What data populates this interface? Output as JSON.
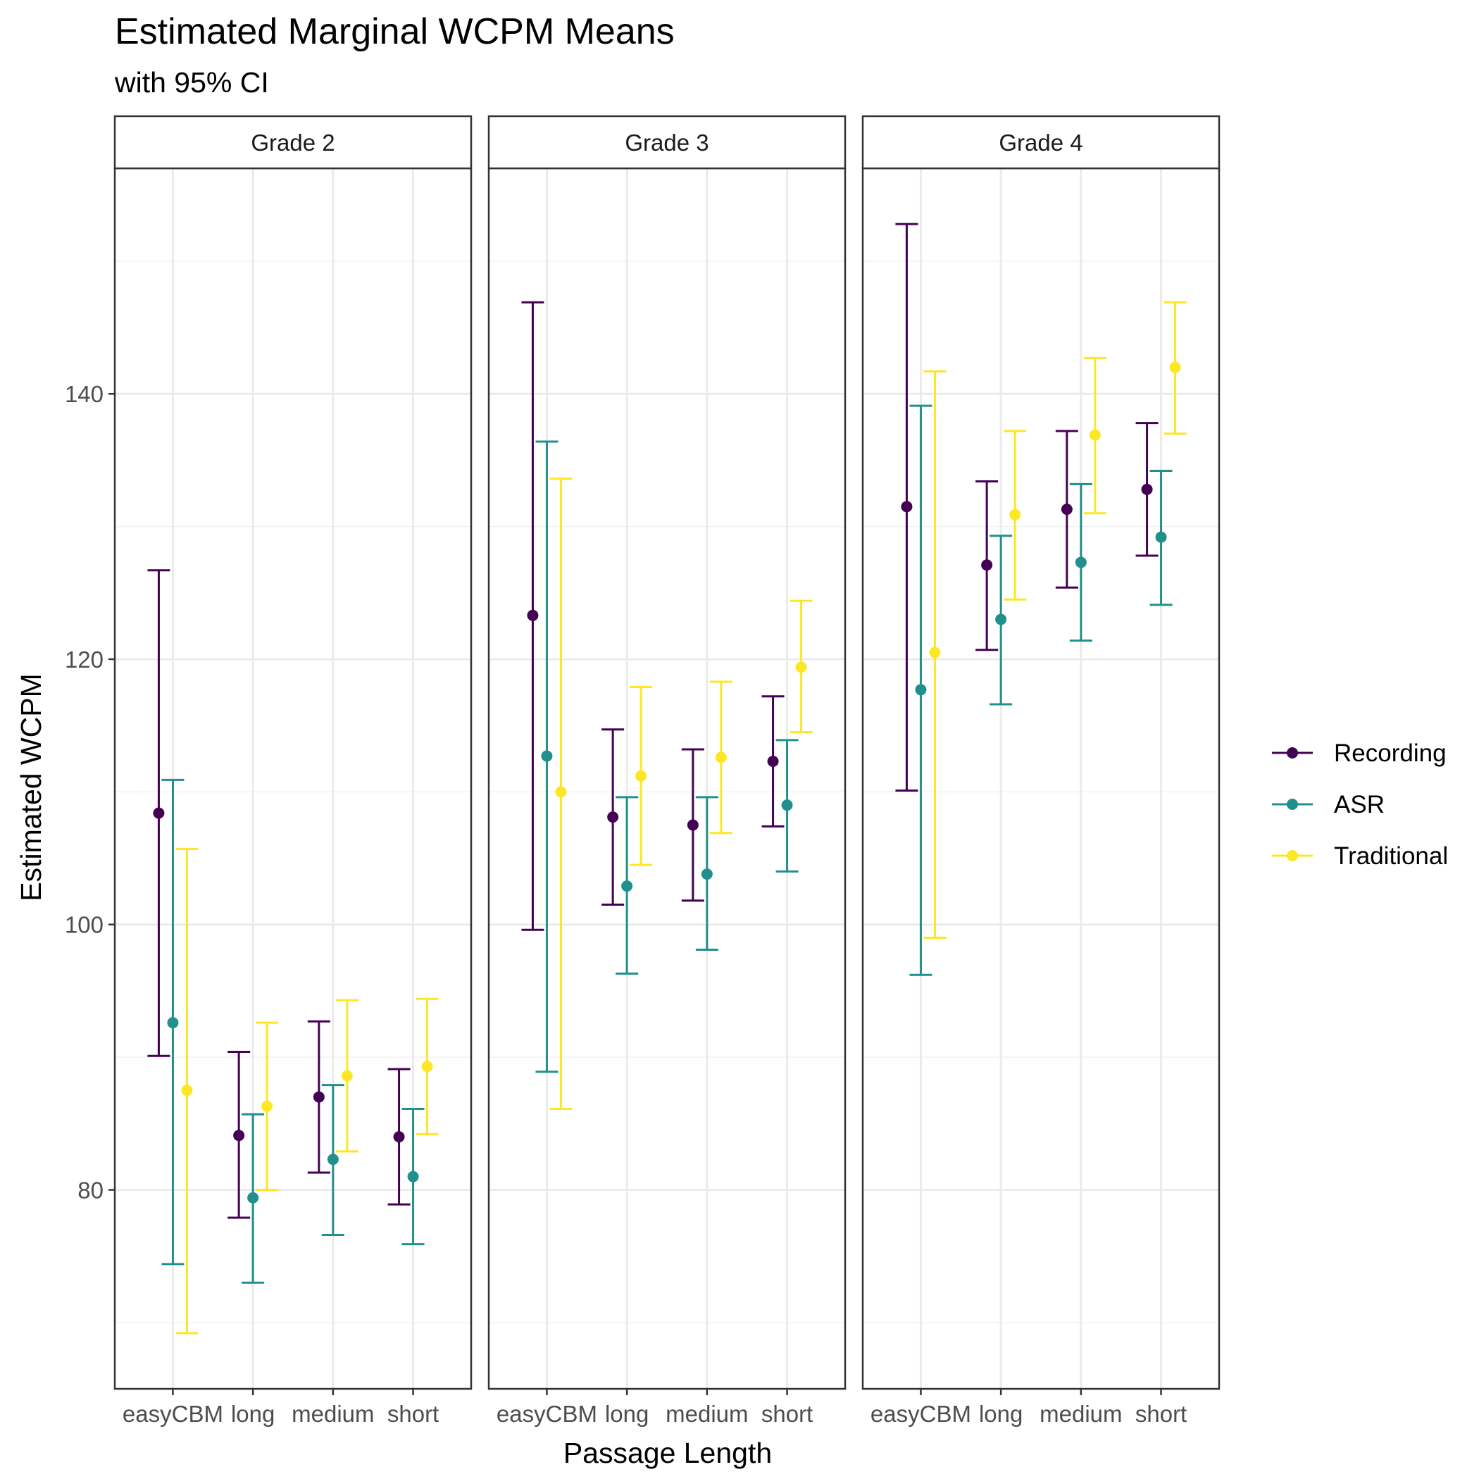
{
  "chart_data": {
    "type": "errorbar",
    "title": "Estimated Marginal WCPM Means",
    "subtitle": "with 95% CI",
    "xlabel": "Passage Length",
    "ylabel": "Estimated WCPM",
    "ylim": [
      65,
      157
    ],
    "yticks": [
      80,
      100,
      120,
      140
    ],
    "grid": true,
    "legend_position": "right",
    "categories": [
      "easyCBM",
      "long",
      "medium",
      "short"
    ],
    "series_names": [
      "Recording",
      "ASR",
      "Traditional"
    ],
    "colors": {
      "Recording": "#440154",
      "ASR": "#21908c",
      "Traditional": "#fde725"
    },
    "panels": [
      {
        "label": "Grade 2",
        "series": [
          {
            "name": "Recording",
            "mean": [
              108.4,
              84.1,
              87.0,
              84.0
            ],
            "lower": [
              90.1,
              77.9,
              81.3,
              78.9
            ],
            "upper": [
              126.7,
              90.4,
              92.7,
              89.1
            ]
          },
          {
            "name": "ASR",
            "mean": [
              92.6,
              79.4,
              82.3,
              81.0
            ],
            "lower": [
              74.4,
              73.0,
              76.6,
              75.9
            ],
            "upper": [
              110.9,
              85.7,
              87.9,
              86.1
            ]
          },
          {
            "name": "Traditional",
            "mean": [
              87.5,
              86.3,
              88.6,
              89.3
            ],
            "lower": [
              69.2,
              80.0,
              82.9,
              84.2
            ],
            "upper": [
              105.7,
              92.6,
              94.3,
              94.4
            ]
          }
        ]
      },
      {
        "label": "Grade 3",
        "series": [
          {
            "name": "Recording",
            "mean": [
              123.3,
              108.1,
              107.5,
              112.3
            ],
            "lower": [
              99.6,
              101.5,
              101.8,
              107.4
            ],
            "upper": [
              146.9,
              114.7,
              113.2,
              117.2
            ]
          },
          {
            "name": "ASR",
            "mean": [
              112.7,
              102.9,
              103.8,
              109.0
            ],
            "lower": [
              88.9,
              96.3,
              98.1,
              104.0
            ],
            "upper": [
              136.4,
              109.6,
              109.6,
              113.9
            ]
          },
          {
            "name": "Traditional",
            "mean": [
              110.0,
              111.2,
              112.6,
              119.4
            ],
            "lower": [
              86.1,
              104.5,
              106.9,
              114.5
            ],
            "upper": [
              133.6,
              117.9,
              118.3,
              124.4
            ]
          }
        ]
      },
      {
        "label": "Grade 4",
        "series": [
          {
            "name": "Recording",
            "mean": [
              131.5,
              127.1,
              131.3,
              132.8
            ],
            "lower": [
              110.1,
              120.7,
              125.4,
              127.8
            ],
            "upper": [
              152.8,
              133.4,
              137.2,
              137.8
            ]
          },
          {
            "name": "ASR",
            "mean": [
              117.7,
              123.0,
              127.3,
              129.2
            ],
            "lower": [
              96.2,
              116.6,
              121.4,
              124.1
            ],
            "upper": [
              139.1,
              129.3,
              133.2,
              134.2
            ]
          },
          {
            "name": "Traditional",
            "mean": [
              120.5,
              130.9,
              136.9,
              142.0
            ],
            "lower": [
              99.0,
              124.5,
              131.0,
              137.0
            ],
            "upper": [
              141.7,
              137.2,
              142.7,
              146.9
            ]
          }
        ]
      }
    ]
  }
}
